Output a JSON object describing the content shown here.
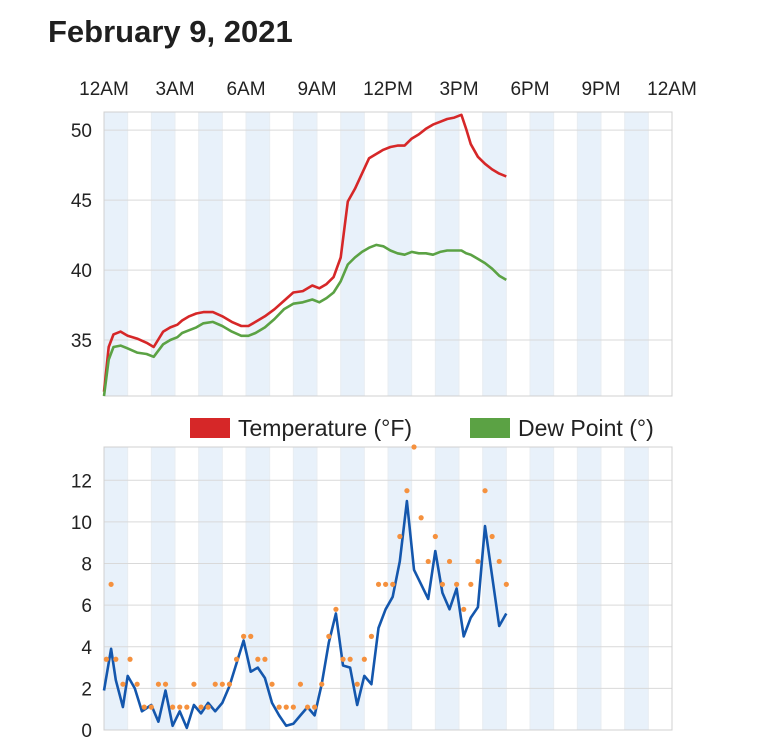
{
  "page": {
    "title": "February 9, 2021"
  },
  "colors": {
    "temperature": "#d62728",
    "dew_point": "#5ba244",
    "wind": "#1457ad",
    "gust": "#f5913e",
    "band": "#e8f1fa",
    "grid": "#d9d9d9"
  },
  "time_axis": {
    "labels": [
      "12AM",
      "3AM",
      "6AM",
      "9AM",
      "12PM",
      "3PM",
      "6PM",
      "9PM",
      "12AM"
    ]
  },
  "chart_data": [
    {
      "type": "line",
      "x_unit": "hours since 12AM",
      "xlim": [
        0,
        24
      ],
      "ylim": [
        31,
        51.3
      ],
      "yticks": [
        "35",
        "40",
        "45",
        "50"
      ],
      "legend": [
        "Temperature (°F)",
        "Dew Point (°)"
      ],
      "grid": true,
      "series": [
        {
          "name": "Temperature (°F)",
          "color_key": "temperature",
          "x": [
            0,
            0.2,
            0.4,
            0.7,
            1.0,
            1.4,
            1.8,
            2.1,
            2.5,
            2.8,
            3.1,
            3.3,
            3.6,
            3.9,
            4.2,
            4.6,
            5.0,
            5.4,
            5.8,
            6.1,
            6.4,
            6.8,
            7.2,
            7.6,
            8.0,
            8.4,
            8.8,
            9.1,
            9.4,
            9.7,
            10.0,
            10.3,
            10.6,
            10.9,
            11.2,
            11.5,
            11.8,
            12.1,
            12.4,
            12.7,
            13.0,
            13.3,
            13.6,
            13.9,
            14.2,
            14.5,
            14.8,
            15.1,
            15.3,
            15.5,
            15.8,
            16.1,
            16.4,
            16.7,
            17.0
          ],
          "y": [
            31.3,
            34.5,
            35.4,
            35.6,
            35.3,
            35.1,
            34.8,
            34.5,
            35.6,
            35.9,
            36.1,
            36.4,
            36.7,
            36.9,
            37.0,
            37.0,
            36.7,
            36.3,
            36.0,
            36.0,
            36.3,
            36.7,
            37.2,
            37.8,
            38.4,
            38.5,
            38.9,
            38.7,
            39.0,
            39.5,
            40.9,
            44.9,
            45.8,
            46.9,
            48.0,
            48.3,
            48.6,
            48.8,
            48.9,
            48.9,
            49.4,
            49.7,
            50.1,
            50.4,
            50.6,
            50.8,
            50.9,
            51.1,
            50.1,
            49.0,
            48.1,
            47.6,
            47.2,
            46.9,
            46.7
          ]
        },
        {
          "name": "Dew Point (°)",
          "color_key": "dew_point",
          "x": [
            0,
            0.2,
            0.4,
            0.7,
            1.0,
            1.4,
            1.8,
            2.1,
            2.5,
            2.8,
            3.1,
            3.3,
            3.6,
            3.9,
            4.2,
            4.6,
            5.0,
            5.4,
            5.8,
            6.1,
            6.4,
            6.8,
            7.2,
            7.6,
            8.0,
            8.4,
            8.8,
            9.1,
            9.4,
            9.7,
            10.0,
            10.3,
            10.6,
            10.9,
            11.2,
            11.5,
            11.8,
            12.1,
            12.4,
            12.7,
            13.0,
            13.3,
            13.6,
            13.9,
            14.2,
            14.5,
            14.8,
            15.1,
            15.3,
            15.5,
            15.8,
            16.1,
            16.4,
            16.7,
            17.0
          ],
          "y": [
            31.0,
            33.6,
            34.5,
            34.6,
            34.4,
            34.1,
            34.0,
            33.8,
            34.7,
            35.0,
            35.2,
            35.5,
            35.7,
            35.9,
            36.2,
            36.3,
            36.0,
            35.6,
            35.3,
            35.3,
            35.5,
            35.9,
            36.5,
            37.2,
            37.6,
            37.7,
            37.9,
            37.7,
            38.0,
            38.4,
            39.2,
            40.4,
            40.9,
            41.3,
            41.6,
            41.8,
            41.7,
            41.4,
            41.2,
            41.1,
            41.3,
            41.2,
            41.2,
            41.1,
            41.3,
            41.4,
            41.4,
            41.4,
            41.2,
            41.1,
            40.8,
            40.5,
            40.1,
            39.6,
            39.3
          ]
        }
      ]
    },
    {
      "type": "line",
      "x_unit": "hours since 12AM",
      "xlim": [
        0,
        24
      ],
      "ylim": [
        0,
        13.6
      ],
      "yticks": [
        "0",
        "2",
        "4",
        "6",
        "8",
        "10",
        "12"
      ],
      "grid": true,
      "series": [
        {
          "name": "",
          "color_key": "wind",
          "style": "line",
          "x": [
            0,
            0.3,
            0.5,
            0.8,
            1.0,
            1.3,
            1.6,
            2.0,
            2.3,
            2.6,
            2.9,
            3.2,
            3.5,
            3.8,
            4.1,
            4.4,
            4.7,
            5.0,
            5.3,
            5.6,
            5.9,
            6.2,
            6.5,
            6.8,
            7.1,
            7.4,
            7.7,
            8.0,
            8.3,
            8.6,
            8.9,
            9.2,
            9.5,
            9.8,
            10.1,
            10.4,
            10.7,
            11.0,
            11.3,
            11.6,
            11.9,
            12.2,
            12.5,
            12.8,
            13.1,
            13.4,
            13.7,
            14.0,
            14.3,
            14.6,
            14.9,
            15.2,
            15.5,
            15.8,
            16.1,
            16.4,
            16.7,
            17.0
          ],
          "y": [
            1.9,
            3.9,
            2.4,
            1.1,
            2.6,
            2.0,
            0.9,
            1.2,
            0.4,
            1.9,
            0.2,
            0.9,
            0.1,
            1.2,
            0.8,
            1.3,
            0.9,
            1.3,
            2.1,
            3.2,
            4.3,
            2.8,
            3.0,
            2.5,
            1.3,
            0.7,
            0.2,
            0.3,
            0.7,
            1.1,
            0.7,
            2.2,
            4.2,
            5.6,
            3.1,
            3.0,
            1.2,
            2.6,
            2.2,
            4.9,
            5.8,
            6.4,
            8.1,
            11.0,
            7.7,
            7.0,
            6.3,
            8.6,
            6.6,
            5.8,
            6.8,
            4.5,
            5.4,
            5.9,
            9.8,
            7.4,
            5.0,
            5.6
          ]
        },
        {
          "name": "",
          "color_key": "gust",
          "style": "dots",
          "x": [
            0.1,
            0.3,
            0.5,
            0.8,
            1.1,
            1.4,
            1.7,
            2.0,
            2.3,
            2.6,
            2.9,
            3.2,
            3.5,
            3.8,
            4.1,
            4.4,
            4.7,
            5.0,
            5.3,
            5.6,
            5.9,
            6.2,
            6.5,
            6.8,
            7.1,
            7.4,
            7.7,
            8.0,
            8.3,
            8.6,
            8.9,
            9.2,
            9.5,
            9.8,
            10.1,
            10.4,
            10.7,
            11.0,
            11.3,
            11.6,
            11.9,
            12.2,
            12.5,
            12.8,
            13.1,
            13.4,
            13.7,
            14.0,
            14.3,
            14.6,
            14.9,
            15.2,
            15.5,
            15.8,
            16.1,
            16.4,
            16.7,
            17.0
          ],
          "y": [
            3.4,
            7.0,
            3.4,
            2.2,
            3.4,
            2.2,
            1.1,
            1.1,
            2.2,
            2.2,
            1.1,
            1.1,
            1.1,
            2.2,
            1.1,
            1.1,
            2.2,
            2.2,
            2.2,
            3.4,
            4.5,
            4.5,
            3.4,
            3.4,
            2.2,
            1.1,
            1.1,
            1.1,
            2.2,
            1.1,
            1.1,
            2.2,
            4.5,
            5.8,
            3.4,
            3.4,
            2.2,
            3.4,
            4.5,
            7.0,
            7.0,
            7.0,
            9.3,
            11.5,
            13.6,
            10.2,
            8.1,
            9.3,
            7.0,
            8.1,
            7.0,
            5.8,
            7.0,
            8.1,
            11.5,
            9.3,
            8.1,
            7.0
          ]
        }
      ]
    }
  ]
}
